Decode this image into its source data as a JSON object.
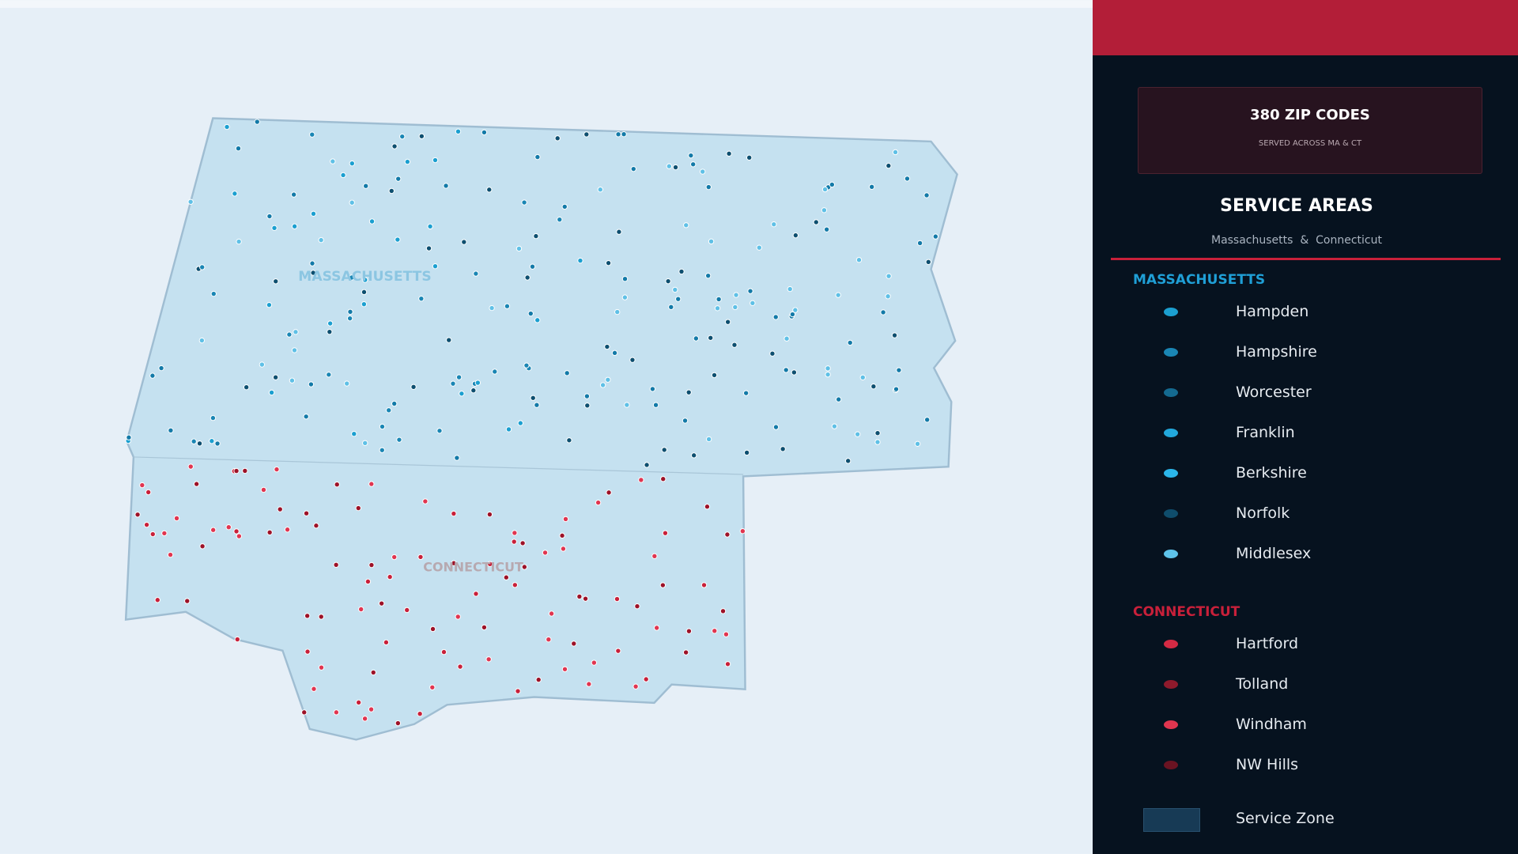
{
  "summary": {
    "count": "380 ZIP CODES",
    "note": "SERVED ACROSS MA & CT"
  },
  "panel": {
    "title": "SERVICE AREAS",
    "subtitle": "Massachusetts  &  Connecticut"
  },
  "map_labels": [
    "MASSACHUSETTS",
    "CONNECTICUT"
  ],
  "legend": {
    "groups": [
      {
        "heading": "MASSACHUSETTS",
        "color": "#1f9fd6",
        "items": [
          {
            "label": "Hampden",
            "color": "#1b9fd0"
          },
          {
            "label": "Hampshire",
            "color": "#1a86b4"
          },
          {
            "label": "Worcester",
            "color": "#146a90"
          },
          {
            "label": "Franklin",
            "color": "#22a8dc"
          },
          {
            "label": "Berkshire",
            "color": "#2bb6ea"
          },
          {
            "label": "Norfolk",
            "color": "#0f4d6c"
          },
          {
            "label": "Middlesex",
            "color": "#5ec3ea"
          }
        ]
      },
      {
        "heading": "CONNECTICUT",
        "color": "#c8203a",
        "items": [
          {
            "label": "Hartford",
            "color": "#d42a44"
          },
          {
            "label": "Tolland",
            "color": "#8e1a2c"
          },
          {
            "label": "Windham",
            "color": "#e0354f"
          },
          {
            "label": "NW Hills",
            "color": "#6a1322"
          }
        ]
      }
    ],
    "zone": "Service Zone"
  }
}
